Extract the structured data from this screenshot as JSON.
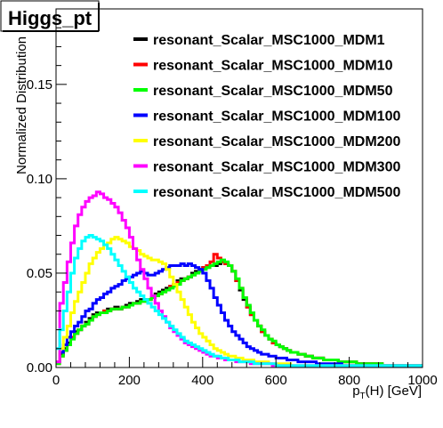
{
  "chart_data": {
    "type": "line",
    "title": "Higgs_pt",
    "xlabel": "p_T(H) [GeV]",
    "xlabel_main": "p",
    "xlabel_sub": "T",
    "xlabel_rest": "(H) [GeV]",
    "ylabel": "Normalized Distribution",
    "xlim": [
      0,
      1000
    ],
    "ylim": [
      0,
      0.19
    ],
    "x_ticks": [
      0,
      200,
      400,
      600,
      800,
      1000
    ],
    "y_ticks": [
      0.0,
      0.05,
      0.1,
      0.15
    ],
    "x_tick_labels": [
      "0",
      "200",
      "400",
      "600",
      "800",
      "1000"
    ],
    "y_tick_labels": [
      "0.00",
      "0.05",
      "0.10",
      "0.15"
    ],
    "bin_width": 10,
    "x": [
      0,
      10,
      20,
      30,
      40,
      50,
      60,
      70,
      80,
      90,
      100,
      110,
      120,
      130,
      140,
      150,
      160,
      170,
      180,
      190,
      200,
      210,
      220,
      230,
      240,
      250,
      260,
      270,
      280,
      290,
      300,
      310,
      320,
      330,
      340,
      350,
      360,
      370,
      380,
      390,
      400,
      410,
      420,
      430,
      440,
      450,
      460,
      470,
      480,
      490,
      500,
      510,
      520,
      530,
      540,
      550,
      560,
      570,
      580,
      590,
      600,
      610,
      620,
      630,
      640,
      650,
      660,
      670,
      680,
      690,
      700,
      710,
      720,
      730,
      740,
      750,
      760,
      770,
      780,
      790,
      800,
      810,
      820,
      830,
      840,
      850,
      860,
      870,
      880,
      890,
      900,
      910,
      920,
      930,
      940,
      950,
      960,
      970,
      980,
      990
    ],
    "legend_placement": "top-right",
    "grid": false,
    "series": [
      {
        "name": "resonant_Scalar_MSC1000_MDM1",
        "color": "#000000",
        "values": [
          0.003,
          0.007,
          0.01,
          0.013,
          0.016,
          0.019,
          0.02,
          0.022,
          0.024,
          0.026,
          0.028,
          0.029,
          0.029,
          0.03,
          0.031,
          0.031,
          0.032,
          0.031,
          0.032,
          0.033,
          0.034,
          0.034,
          0.035,
          0.036,
          0.036,
          0.036,
          0.037,
          0.039,
          0.04,
          0.041,
          0.042,
          0.043,
          0.044,
          0.046,
          0.047,
          0.047,
          0.048,
          0.05,
          0.051,
          0.052,
          0.053,
          0.053,
          0.054,
          0.054,
          0.055,
          0.056,
          0.055,
          0.054,
          0.051,
          0.046,
          0.041,
          0.036,
          0.032,
          0.028,
          0.025,
          0.022,
          0.019,
          0.017,
          0.015,
          0.013,
          0.012,
          0.011,
          0.01,
          0.009,
          0.008,
          0.008,
          0.007,
          0.007,
          0.006,
          0.006,
          0.005,
          0.005,
          0.005,
          0.004,
          0.004,
          0.004,
          0.004,
          0.003,
          0.003,
          0.003,
          0.003,
          0.003,
          0.002,
          0.002,
          0.002,
          0.002,
          0.002,
          0.002,
          0.002,
          0.001,
          0.001,
          0.001,
          0.001,
          0.001,
          0.001,
          0.001,
          0.001,
          0.001,
          0.001,
          0.001
        ]
      },
      {
        "name": "resonant_Scalar_MSC1000_MDM10",
        "color": "#ff0000",
        "values": [
          0.002,
          0.006,
          0.009,
          0.012,
          0.016,
          0.018,
          0.02,
          0.022,
          0.023,
          0.025,
          0.027,
          0.028,
          0.029,
          0.03,
          0.03,
          0.031,
          0.031,
          0.031,
          0.032,
          0.032,
          0.033,
          0.034,
          0.034,
          0.035,
          0.035,
          0.036,
          0.037,
          0.038,
          0.039,
          0.04,
          0.041,
          0.043,
          0.044,
          0.045,
          0.046,
          0.047,
          0.048,
          0.049,
          0.05,
          0.051,
          0.053,
          0.054,
          0.056,
          0.06,
          0.058,
          0.056,
          0.055,
          0.054,
          0.051,
          0.046,
          0.042,
          0.037,
          0.032,
          0.028,
          0.025,
          0.022,
          0.019,
          0.017,
          0.015,
          0.013,
          0.012,
          0.011,
          0.01,
          0.009,
          0.008,
          0.008,
          0.007,
          0.007,
          0.006,
          0.006,
          0.005,
          0.005,
          0.005,
          0.004,
          0.004,
          0.004,
          0.004,
          0.003,
          0.003,
          0.003,
          0.003,
          0.003,
          0.002,
          0.002,
          0.002,
          0.002,
          0.002,
          0.002,
          0.002,
          0.001,
          0.001,
          0.001,
          0.001,
          0.001,
          0.001,
          0.001,
          0.001,
          0.001,
          0.001,
          0.001
        ]
      },
      {
        "name": "resonant_Scalar_MSC1000_MDM50",
        "color": "#00ff00",
        "values": [
          0.002,
          0.006,
          0.009,
          0.012,
          0.015,
          0.018,
          0.02,
          0.022,
          0.023,
          0.025,
          0.027,
          0.028,
          0.029,
          0.029,
          0.03,
          0.031,
          0.031,
          0.031,
          0.032,
          0.032,
          0.033,
          0.034,
          0.034,
          0.035,
          0.035,
          0.036,
          0.037,
          0.038,
          0.039,
          0.04,
          0.041,
          0.042,
          0.043,
          0.044,
          0.046,
          0.047,
          0.048,
          0.049,
          0.05,
          0.051,
          0.052,
          0.053,
          0.054,
          0.055,
          0.056,
          0.057,
          0.056,
          0.054,
          0.051,
          0.047,
          0.042,
          0.037,
          0.033,
          0.029,
          0.025,
          0.022,
          0.02,
          0.017,
          0.015,
          0.014,
          0.012,
          0.011,
          0.01,
          0.009,
          0.008,
          0.008,
          0.007,
          0.007,
          0.006,
          0.006,
          0.005,
          0.005,
          0.005,
          0.004,
          0.004,
          0.004,
          0.004,
          0.003,
          0.003,
          0.003,
          0.003,
          0.003,
          0.002,
          0.002,
          0.002,
          0.002,
          0.002,
          0.002,
          0.002,
          0.001,
          0.001,
          0.001,
          0.001,
          0.001,
          0.001,
          0.001,
          0.001,
          0.001,
          0.001,
          0.001
        ]
      },
      {
        "name": "resonant_Scalar_MSC1000_MDM100",
        "color": "#0000ff",
        "values": [
          0.003,
          0.008,
          0.012,
          0.016,
          0.019,
          0.022,
          0.024,
          0.027,
          0.03,
          0.031,
          0.034,
          0.036,
          0.037,
          0.039,
          0.04,
          0.042,
          0.043,
          0.044,
          0.046,
          0.047,
          0.048,
          0.049,
          0.05,
          0.051,
          0.05,
          0.049,
          0.049,
          0.05,
          0.051,
          0.052,
          0.053,
          0.054,
          0.054,
          0.054,
          0.055,
          0.054,
          0.055,
          0.054,
          0.053,
          0.052,
          0.05,
          0.046,
          0.042,
          0.037,
          0.033,
          0.029,
          0.025,
          0.022,
          0.019,
          0.017,
          0.015,
          0.013,
          0.011,
          0.01,
          0.009,
          0.008,
          0.007,
          0.007,
          0.006,
          0.006,
          0.005,
          0.005,
          0.005,
          0.004,
          0.004,
          0.004,
          0.003,
          0.003,
          0.003,
          0.003,
          0.003,
          0.002,
          0.002,
          0.002,
          0.002,
          0.002,
          0.002,
          0.002,
          0.001,
          0.001,
          0.001,
          0.001,
          0.001,
          0.001,
          0.001,
          0.001,
          0.001,
          0.001,
          0.001,
          0.001,
          0.001,
          0.001,
          0.001,
          0.001,
          0.001,
          0.001,
          0.001,
          0.001,
          0.001,
          0.001
        ]
      },
      {
        "name": "resonant_Scalar_MSC1000_MDM200",
        "color": "#ffff00",
        "values": [
          0.003,
          0.01,
          0.016,
          0.022,
          0.029,
          0.035,
          0.04,
          0.045,
          0.05,
          0.055,
          0.058,
          0.061,
          0.063,
          0.065,
          0.066,
          0.068,
          0.069,
          0.068,
          0.067,
          0.066,
          0.064,
          0.063,
          0.062,
          0.06,
          0.059,
          0.058,
          0.057,
          0.057,
          0.056,
          0.055,
          0.052,
          0.048,
          0.044,
          0.04,
          0.036,
          0.032,
          0.028,
          0.024,
          0.021,
          0.018,
          0.016,
          0.014,
          0.012,
          0.01,
          0.009,
          0.008,
          0.007,
          0.006,
          0.006,
          0.005,
          0.005,
          0.004,
          0.004,
          0.004,
          0.003,
          0.003,
          0.003,
          0.003,
          0.002,
          0.002,
          0.002,
          0.002,
          0.002,
          0.002,
          0.001,
          0.001,
          0.001,
          0.001,
          0.001,
          0.001,
          0.001,
          0.001,
          0.001,
          0.001,
          0.001,
          0.001,
          0.001,
          0.001,
          0.001,
          0.001,
          0.001,
          0.001,
          0.001,
          0.001,
          0.001,
          0.001,
          0.001,
          0.001,
          0.001,
          0.001,
          0.001,
          0.001,
          0.001,
          0.001,
          0.001,
          0.001,
          0.001,
          0.001,
          0.001,
          0.001
        ]
      },
      {
        "name": "resonant_Scalar_MSC1000_MDM300",
        "color": "#ff00ff",
        "values": [
          0.003,
          0.034,
          0.045,
          0.056,
          0.066,
          0.075,
          0.081,
          0.085,
          0.088,
          0.09,
          0.091,
          0.093,
          0.092,
          0.09,
          0.089,
          0.087,
          0.085,
          0.082,
          0.078,
          0.074,
          0.069,
          0.063,
          0.057,
          0.052,
          0.047,
          0.042,
          0.038,
          0.034,
          0.03,
          0.027,
          0.024,
          0.021,
          0.019,
          0.017,
          0.015,
          0.013,
          0.012,
          0.011,
          0.01,
          0.009,
          0.008,
          0.007,
          0.006,
          0.006,
          0.005,
          0.005,
          0.004,
          0.004,
          0.004,
          0.003,
          0.003,
          0.003,
          0.003,
          0.002,
          0.002,
          0.002,
          0.002,
          0.002,
          0.002,
          0.001,
          0.001,
          0.001,
          0.001,
          0.001,
          0.001,
          0.001,
          0.001,
          0.001,
          0.001,
          0.001,
          0.001,
          0.001,
          0.001,
          0.001,
          0.001,
          0.001,
          0.001,
          0.001,
          0.001,
          0.001,
          0.001,
          0.001,
          0.001,
          0.001,
          0.001,
          0.001,
          0.001,
          0.001,
          0.001,
          0.001,
          0.001,
          0.001,
          0.001,
          0.001,
          0.001,
          0.001,
          0.001,
          0.001,
          0.001,
          0.001
        ]
      },
      {
        "name": "resonant_Scalar_MSC1000_MDM500",
        "color": "#00ffff",
        "values": [
          0.01,
          0.02,
          0.03,
          0.04,
          0.05,
          0.058,
          0.063,
          0.067,
          0.069,
          0.07,
          0.069,
          0.068,
          0.067,
          0.065,
          0.063,
          0.06,
          0.057,
          0.054,
          0.051,
          0.048,
          0.045,
          0.042,
          0.04,
          0.038,
          0.036,
          0.034,
          0.032,
          0.03,
          0.028,
          0.026,
          0.024,
          0.022,
          0.02,
          0.018,
          0.016,
          0.014,
          0.013,
          0.012,
          0.011,
          0.01,
          0.009,
          0.008,
          0.007,
          0.006,
          0.006,
          0.005,
          0.005,
          0.004,
          0.004,
          0.004,
          0.003,
          0.003,
          0.003,
          0.003,
          0.002,
          0.002,
          0.002,
          0.002,
          0.002,
          0.002,
          0.001,
          0.001,
          0.001,
          0.001,
          0.001,
          0.001,
          0.001,
          0.001,
          0.001,
          0.001,
          0.001,
          0.001,
          0.001,
          0.001,
          0.001,
          0.001,
          0.001,
          0.001,
          0.001,
          0.001,
          0.001,
          0.001,
          0.001,
          0.001,
          0.001,
          0.001,
          0.001,
          0.001,
          0.001,
          0.001,
          0.001,
          0.001,
          0.001,
          0.001,
          0.001,
          0.001,
          0.001,
          0.001,
          0.001,
          0.001
        ]
      }
    ]
  }
}
